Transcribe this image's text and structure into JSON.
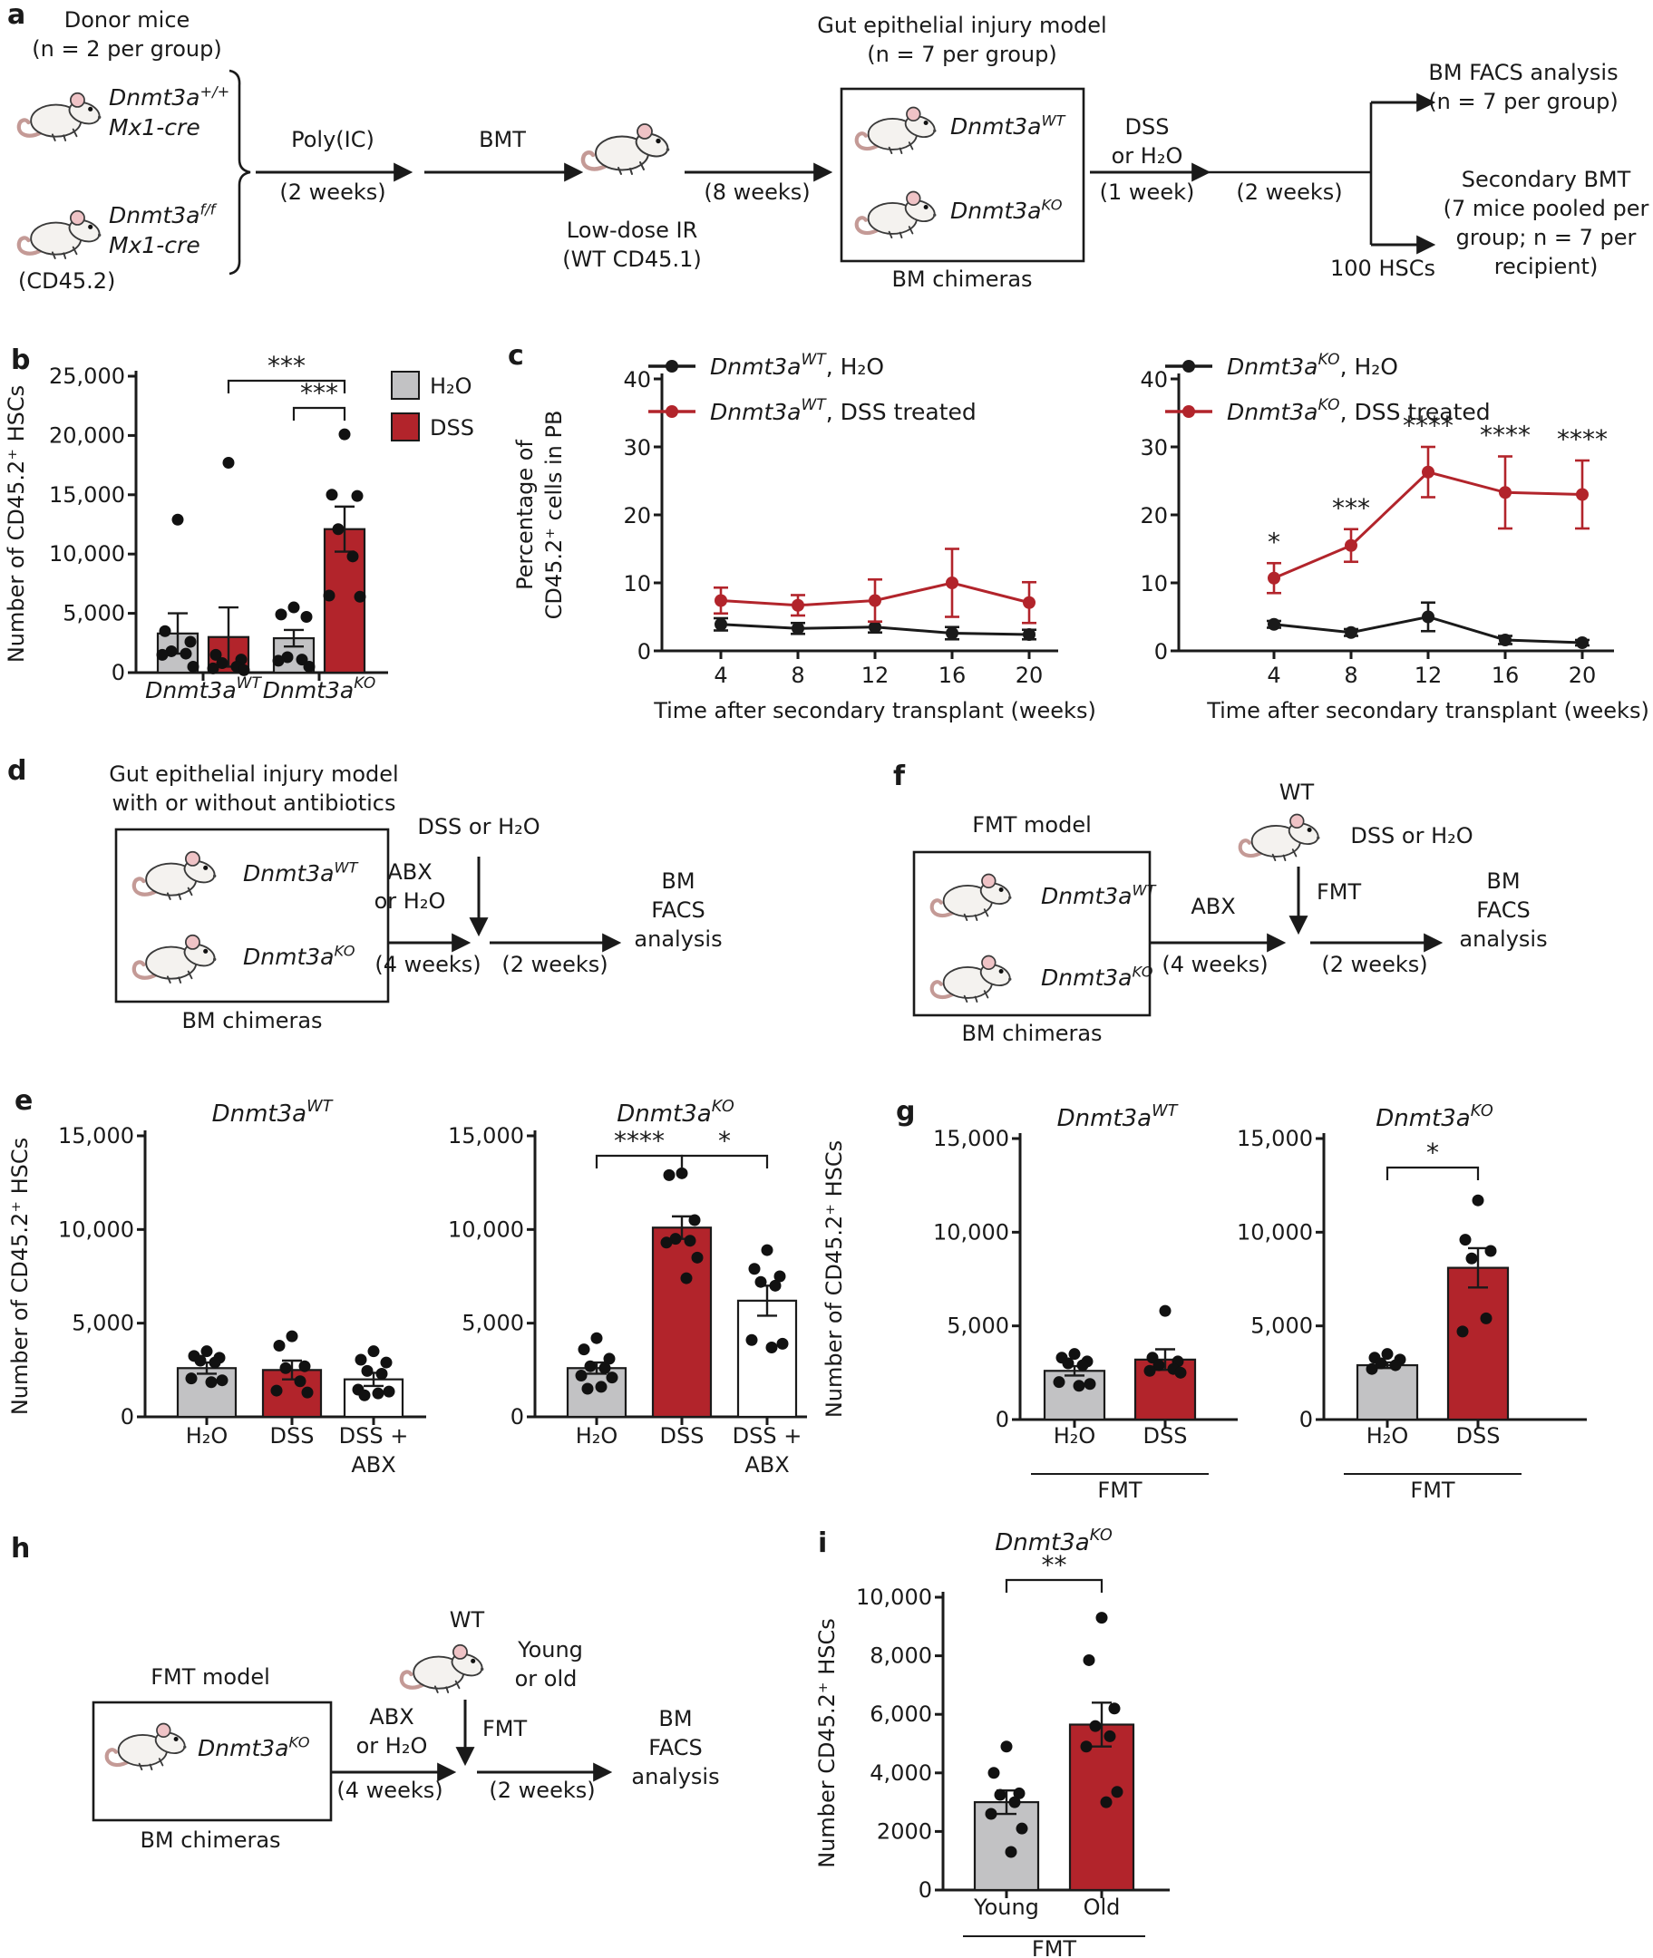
{
  "panels": {
    "a": "a",
    "b": "b",
    "c": "c",
    "d": "d",
    "e": "e",
    "f": "f",
    "g": "g",
    "h": "h",
    "i": "i"
  },
  "colors": {
    "red": "#B2242B",
    "gray": "#C2C2C4",
    "white": "#FFFFFF",
    "black": "#1A1A1A"
  },
  "panel_a": {
    "donor_line1": "Donor mice",
    "donor_line2": "(n = 2 per group)",
    "mouse1_gene": "Dnmt3a",
    "mouse1_sup": "+/+",
    "mouse1_line2": "Mx1-cre",
    "mouse2_gene": "Dnmt3a",
    "mouse2_sup": "f/f",
    "mouse2_line2": "Mx1-cre",
    "cd45_label": "(CD45.2)",
    "step1_label": "Poly(IC)",
    "step1_time": "(2 weeks)",
    "step2_label": "BMT",
    "ir_line1": "Low-dose IR",
    "ir_line2": "(WT CD45.1)",
    "step3_time": "(8 weeks)",
    "box_line1": "Gut epithelial injury model",
    "box_line2": "(n = 7 per group)",
    "boxmouse1_gene": "Dnmt3a",
    "boxmouse1_sup": "WT",
    "boxmouse2_gene": "Dnmt3a",
    "boxmouse2_sup": "KO",
    "box_caption": "BM chimeras",
    "step4_line1": "DSS",
    "step4_line2": "or H₂O",
    "step4_time": "(1 week)",
    "step5_time": "(2 weeks)",
    "out_top_line1": "BM FACS analysis",
    "out_top_line2": "(n = 7 per group)",
    "out_bottom_line1": "Secondary BMT",
    "out_bottom_line2": "(7 mice pooled per",
    "out_bottom_line3": "group; n = 7 per",
    "out_bottom_line4": "recipient)",
    "hsc_label": "100 HSCs"
  },
  "panel_d": {
    "title_line1": "Gut epithelial injury model",
    "title_line2": "with or without antibiotics",
    "mouse1_gene": "Dnmt3a",
    "mouse1_sup": "WT",
    "mouse2_gene": "Dnmt3a",
    "mouse2_sup": "KO",
    "box_caption": "BM chimeras",
    "abx_line1": "ABX",
    "abx_line2": "or H₂O",
    "abx_time": "(4 weeks)",
    "dss_label": "DSS or H₂O",
    "step2_time": "(2 weeks)",
    "out_line1": "BM",
    "out_line2": "FACS",
    "out_line3": "analysis"
  },
  "panel_f": {
    "title": "FMT model",
    "mouse1_gene": "Dnmt3a",
    "mouse1_sup": "WT",
    "mouse2_gene": "Dnmt3a",
    "mouse2_sup": "KO",
    "box_caption": "BM chimeras",
    "wt_label": "WT",
    "dss_label": "DSS or H₂O",
    "fmt_label": "FMT",
    "abx_label": "ABX",
    "abx_time": "(4 weeks)",
    "step2_time": "(2 weeks)",
    "out_line1": "BM",
    "out_line2": "FACS",
    "out_line3": "analysis"
  },
  "panel_h": {
    "title": "FMT model",
    "mouse_gene": "Dnmt3a",
    "mouse_sup": "KO",
    "box_caption": "BM chimeras",
    "wt_label": "WT",
    "age_line1": "Young",
    "age_line2": "or old",
    "fmt_label": "FMT",
    "abx_line1": "ABX",
    "abx_line2": "or H₂O",
    "abx_time": "(4 weeks)",
    "step2_time": "(2 weeks)",
    "out_line1": "BM",
    "out_line2": "FACS",
    "out_line3": "analysis"
  },
  "chart_data": [
    {
      "id": "b",
      "type": "bar",
      "ylabel": "Number of CD45.2⁺ HSCs",
      "ylim": [
        0,
        25000
      ],
      "yticks": [
        {
          "v": 0,
          "label": "0"
        },
        {
          "v": 5000,
          "label": "5,000"
        },
        {
          "v": 10000,
          "label": "10,000"
        },
        {
          "v": 15000,
          "label": "15,000"
        },
        {
          "v": 20000,
          "label": "20,000"
        },
        {
          "v": 25000,
          "label": "25,000"
        }
      ],
      "group_labels": [
        {
          "base": "Dnmt3a",
          "sup": "WT"
        },
        {
          "base": "Dnmt3a",
          "sup": "KO"
        }
      ],
      "bars": [
        {
          "group": 0,
          "treatment": "H₂O",
          "color": "gray",
          "mean": 3300,
          "err": 1700,
          "points": [
            12900,
            3500,
            2600,
            1800,
            1600,
            1500,
            500
          ]
        },
        {
          "group": 0,
          "treatment": "DSS",
          "color": "red",
          "mean": 3000,
          "err": 2500,
          "points": [
            17700,
            1500,
            1100,
            800,
            500,
            350,
            200
          ]
        },
        {
          "group": 1,
          "treatment": "H₂O",
          "color": "gray",
          "mean": 2900,
          "err": 700,
          "points": [
            5500,
            4900,
            4700,
            1300,
            1100,
            1000,
            500
          ]
        },
        {
          "group": 1,
          "treatment": "DSS",
          "color": "red",
          "mean": 12100,
          "err": 1900,
          "points": [
            20100,
            15000,
            14900,
            12100,
            9800,
            6500,
            6400
          ]
        }
      ],
      "legend": [
        {
          "label": "H₂O",
          "color": "gray"
        },
        {
          "label": "DSS",
          "color": "red"
        }
      ],
      "sig": [
        {
          "from": 1,
          "to": 3,
          "label": "***"
        },
        {
          "from": 2,
          "to": 3,
          "label": "***"
        }
      ]
    },
    {
      "id": "c1",
      "type": "line",
      "ylabel_lines": [
        "Percentage of",
        "CD45.2⁺ cells in PB"
      ],
      "ylim": [
        0,
        40
      ],
      "yticks": [
        0,
        10,
        20,
        30,
        40
      ],
      "x": [
        4,
        8,
        12,
        16,
        20
      ],
      "xlabel": "Time after secondary transplant (weeks)",
      "series": [
        {
          "legend": {
            "base": "Dnmt3a",
            "sup": "WT",
            "suffix": ", H₂O"
          },
          "color": "black",
          "y": [
            3.9,
            3.3,
            3.5,
            2.6,
            2.4
          ],
          "err": [
            0.9,
            0.8,
            0.8,
            0.9,
            0.7
          ],
          "stars": [
            "",
            "",
            "",
            "",
            ""
          ]
        },
        {
          "legend": {
            "base": "Dnmt3a",
            "sup": "WT",
            "suffix": ", DSS treated"
          },
          "color": "red",
          "y": [
            7.4,
            6.7,
            7.4,
            10,
            7.1
          ],
          "err": [
            1.9,
            1.5,
            3.1,
            5,
            3
          ],
          "stars": [
            "",
            "",
            "",
            "",
            ""
          ]
        }
      ]
    },
    {
      "id": "c2",
      "type": "line",
      "ylabel_lines": [],
      "ylim": [
        0,
        40
      ],
      "yticks": [
        0,
        10,
        20,
        30,
        40
      ],
      "x": [
        4,
        8,
        12,
        16,
        20
      ],
      "xlabel": "Time after secondary transplant (weeks)",
      "series": [
        {
          "legend": {
            "base": "Dnmt3a",
            "sup": "KO",
            "suffix": ", H₂O"
          },
          "color": "black",
          "y": [
            3.9,
            2.7,
            5,
            1.6,
            1.2
          ],
          "err": [
            0.5,
            0.5,
            2.1,
            0.6,
            0.4
          ],
          "stars": [
            "",
            "",
            "",
            "",
            ""
          ]
        },
        {
          "legend": {
            "base": "Dnmt3a",
            "sup": "KO",
            "suffix": ", DSS treated"
          },
          "color": "red",
          "y": [
            10.7,
            15.5,
            26.3,
            23.3,
            23
          ],
          "err": [
            2.2,
            2.4,
            3.7,
            5.3,
            5
          ],
          "stars": [
            "*",
            "***",
            "****",
            "****",
            "****"
          ]
        }
      ]
    },
    {
      "id": "e1",
      "type": "bar",
      "title": {
        "base": "Dnmt3a",
        "sup": "WT"
      },
      "ylabel": "Number of CD45.2⁺ HSCs",
      "ylim": [
        0,
        15000
      ],
      "yticks": [
        {
          "v": 0,
          "label": "0"
        },
        {
          "v": 5000,
          "label": "5,000"
        },
        {
          "v": 10000,
          "label": "10,000"
        },
        {
          "v": 15000,
          "label": "15,000"
        }
      ],
      "bars": [
        {
          "treatment": "H₂O",
          "color": "gray",
          "mean": 2600,
          "err": 300,
          "points": [
            3500,
            3250,
            3150,
            3000,
            2900,
            2050,
            1950,
            1850
          ]
        },
        {
          "treatment": "DSS",
          "color": "red",
          "mean": 2500,
          "err": 500,
          "points": [
            4300,
            3800,
            2700,
            2600,
            1900,
            1400,
            1300
          ]
        },
        {
          "treatment": "DSS +",
          "treatment2": "ABX",
          "color": "white",
          "mean": 2000,
          "err": 350,
          "points": [
            3500,
            3050,
            2900,
            2450,
            2300,
            1450,
            1350,
            1250,
            1150
          ]
        }
      ],
      "sig": []
    },
    {
      "id": "e2",
      "type": "bar",
      "title": {
        "base": "Dnmt3a",
        "sup": "KO"
      },
      "ylabel": "",
      "ylim": [
        0,
        15000
      ],
      "yticks": [
        {
          "v": 0,
          "label": "0"
        },
        {
          "v": 5000,
          "label": "5,000"
        },
        {
          "v": 10000,
          "label": "10,000"
        },
        {
          "v": 15000,
          "label": "15,000"
        }
      ],
      "bars": [
        {
          "treatment": "H₂O",
          "color": "gray",
          "mean": 2600,
          "err": 300,
          "points": [
            4200,
            3600,
            3100,
            2700,
            2600,
            2200,
            2100,
            1600,
            1500
          ]
        },
        {
          "treatment": "DSS",
          "color": "red",
          "mean": 10100,
          "err": 600,
          "points": [
            13000,
            12900,
            10500,
            9500,
            9400,
            9300,
            8500,
            7400
          ]
        },
        {
          "treatment": "DSS +",
          "treatment2": "ABX",
          "color": "white",
          "mean": 6200,
          "err": 800,
          "points": [
            8900,
            7900,
            7500,
            7200,
            7000,
            4100,
            3900,
            3700
          ]
        }
      ],
      "sig": [
        {
          "from": 0,
          "to": 1,
          "label": "****"
        },
        {
          "from": 1,
          "to": 2,
          "label": "*"
        }
      ]
    },
    {
      "id": "g1",
      "type": "bar",
      "title": {
        "base": "Dnmt3a",
        "sup": "WT"
      },
      "ylabel": "Number of CD45.2⁺ HSCs",
      "ylim": [
        0,
        15000
      ],
      "yticks": [
        {
          "v": 0,
          "label": "0"
        },
        {
          "v": 5000,
          "label": "5,000"
        },
        {
          "v": 10000,
          "label": "10,000"
        },
        {
          "v": 15000,
          "label": "15,000"
        }
      ],
      "bars": [
        {
          "treatment": "H₂O",
          "color": "gray",
          "mean": 2600,
          "err": 250,
          "points": [
            3500,
            3300,
            3100,
            3000,
            2900,
            2000,
            1900,
            1800
          ]
        },
        {
          "treatment": "DSS",
          "color": "red",
          "mean": 3200,
          "err": 550,
          "points": [
            5800,
            3300,
            3100,
            2900,
            2700,
            2600,
            2500
          ]
        }
      ],
      "sig": [],
      "footer": "FMT"
    },
    {
      "id": "g2",
      "type": "bar",
      "title": {
        "base": "Dnmt3a",
        "sup": "KO"
      },
      "ylabel": "",
      "ylim": [
        0,
        15000
      ],
      "yticks": [
        {
          "v": 0,
          "label": "0"
        },
        {
          "v": 5000,
          "label": "5,000"
        },
        {
          "v": 10000,
          "label": "10,000"
        },
        {
          "v": 15000,
          "label": "15,000"
        }
      ],
      "bars": [
        {
          "treatment": "H₂O",
          "color": "gray",
          "mean": 2900,
          "err": 150,
          "points": [
            3500,
            3300,
            3200,
            3000,
            2900,
            2700
          ]
        },
        {
          "treatment": "DSS",
          "color": "red",
          "mean": 8100,
          "err": 1050,
          "points": [
            11700,
            9600,
            9000,
            8600,
            5400,
            4700
          ]
        }
      ],
      "sig": [
        {
          "from": 0,
          "to": 1,
          "label": "*"
        }
      ],
      "footer": "FMT"
    },
    {
      "id": "i",
      "type": "bar",
      "title": {
        "base": "Dnmt3a",
        "sup": "KO"
      },
      "ylabel": "Number CD45.2⁺ HSCs",
      "ylim": [
        0,
        10000
      ],
      "yticks": [
        {
          "v": 0,
          "label": "0"
        },
        {
          "v": 2000,
          "label": "2000"
        },
        {
          "v": 4000,
          "label": "4,000"
        },
        {
          "v": 6000,
          "label": "6,000"
        },
        {
          "v": 8000,
          "label": "8,000"
        },
        {
          "v": 10000,
          "label": "10,000"
        }
      ],
      "bars": [
        {
          "treatment": "Young",
          "color": "gray",
          "mean": 3000,
          "err": 400,
          "points": [
            4900,
            4000,
            3300,
            3250,
            3000,
            2600,
            2100,
            1300
          ]
        },
        {
          "treatment": "Old",
          "color": "red",
          "mean": 5650,
          "err": 750,
          "points": [
            9300,
            7850,
            6200,
            5600,
            5250,
            4900,
            3350,
            3000
          ]
        }
      ],
      "sig": [
        {
          "from": 0,
          "to": 1,
          "label": "**"
        }
      ],
      "footer": "FMT"
    }
  ]
}
